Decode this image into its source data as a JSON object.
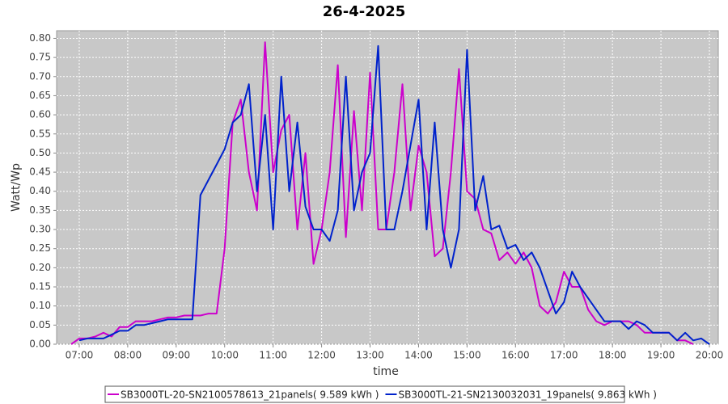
{
  "chart_data": {
    "type": "line",
    "title": "26-4-2025",
    "x_label": "time",
    "y_label": "Watt/Wp",
    "x": [
      "06:50",
      "07:00",
      "07:10",
      "07:20",
      "07:30",
      "07:40",
      "07:50",
      "08:00",
      "08:10",
      "08:20",
      "08:30",
      "08:40",
      "08:50",
      "09:00",
      "09:10",
      "09:20",
      "09:30",
      "09:40",
      "09:50",
      "10:00",
      "10:10",
      "10:20",
      "10:30",
      "10:40",
      "10:50",
      "11:00",
      "11:10",
      "11:20",
      "11:30",
      "11:40",
      "11:50",
      "12:00",
      "12:10",
      "12:20",
      "12:30",
      "12:40",
      "12:50",
      "13:00",
      "13:10",
      "13:20",
      "13:30",
      "13:40",
      "13:50",
      "14:00",
      "14:10",
      "14:20",
      "14:30",
      "14:40",
      "14:50",
      "15:00",
      "15:10",
      "15:20",
      "15:30",
      "15:40",
      "15:50",
      "16:00",
      "16:10",
      "16:20",
      "16:30",
      "16:40",
      "16:50",
      "17:00",
      "17:10",
      "17:20",
      "17:30",
      "17:40",
      "17:50",
      "18:00",
      "18:10",
      "18:20",
      "18:30",
      "18:40",
      "18:50",
      "19:00",
      "19:10",
      "19:20",
      "19:30",
      "19:40",
      "19:50",
      "20:00"
    ],
    "series": [
      {
        "name": "SB3000TL-20-SN2100578613_21panels( 9.589 kWh )",
        "color": "#cc00cc",
        "values": [
          0,
          0.015,
          0.015,
          0.02,
          0.03,
          0.02,
          0.045,
          0.045,
          0.06,
          0.06,
          0.06,
          0.065,
          0.07,
          0.07,
          0.075,
          0.075,
          0.075,
          0.08,
          0.08,
          0.25,
          0.58,
          0.64,
          0.45,
          0.35,
          0.79,
          0.45,
          0.56,
          0.6,
          0.3,
          0.5,
          0.21,
          0.3,
          0.45,
          0.73,
          0.28,
          0.61,
          0.35,
          0.71,
          0.3,
          0.3,
          0.45,
          0.68,
          0.35,
          0.52,
          0.45,
          0.23,
          0.25,
          0.45,
          0.72,
          0.4,
          0.38,
          0.3,
          0.29,
          0.22,
          0.24,
          0.21,
          0.24,
          0.2,
          0.1,
          0.08,
          0.11,
          0.19,
          0.15,
          0.15,
          0.09,
          0.06,
          0.05,
          0.06,
          0.06,
          0.06,
          0.05,
          0.03,
          0.03,
          0.03,
          0.03,
          0.01,
          0.01,
          0,
          null,
          null
        ]
      },
      {
        "name": "SB3000TL-21-SN2130032031_19panels( 9.863 kWh )",
        "color": "#0022cc",
        "values": [
          null,
          0.01,
          0.015,
          0.015,
          0.015,
          0.025,
          0.035,
          0.035,
          0.05,
          0.05,
          0.055,
          0.06,
          0.065,
          0.065,
          0.065,
          0.065,
          0.39,
          0.43,
          0.47,
          0.51,
          0.58,
          0.6,
          0.68,
          0.4,
          0.6,
          0.3,
          0.7,
          0.4,
          0.58,
          0.36,
          0.3,
          0.3,
          0.27,
          0.35,
          0.7,
          0.35,
          0.45,
          0.5,
          0.78,
          0.3,
          0.3,
          0.4,
          0.52,
          0.64,
          0.3,
          0.58,
          0.3,
          0.2,
          0.3,
          0.77,
          0.35,
          0.44,
          0.3,
          0.31,
          0.25,
          0.26,
          0.22,
          0.24,
          0.2,
          0.14,
          0.08,
          0.11,
          0.19,
          0.15,
          0.12,
          0.09,
          0.06,
          0.06,
          0.06,
          0.04,
          0.06,
          0.05,
          0.03,
          0.03,
          0.03,
          0.01,
          0.03,
          0.01,
          0.015,
          0
        ]
      }
    ],
    "xlim": [
      "06:32",
      "20:11"
    ],
    "xticks": [
      "07:00",
      "08:00",
      "09:00",
      "10:00",
      "11:00",
      "12:00",
      "13:00",
      "14:00",
      "15:00",
      "16:00",
      "17:00",
      "18:00",
      "19:00",
      "20:00"
    ],
    "ylim": [
      0,
      0.82
    ],
    "yticks": [
      {
        "value": 0,
        "label": "0.00"
      },
      {
        "value": 0.05,
        "label": "0.05"
      },
      {
        "value": 0.1,
        "label": "0.10"
      },
      {
        "value": 0.15,
        "label": "0.15"
      },
      {
        "value": 0.2,
        "label": "0.20"
      },
      {
        "value": 0.25,
        "label": "0.25"
      },
      {
        "value": 0.3,
        "label": "0.30"
      },
      {
        "value": 0.35,
        "label": "0.35"
      },
      {
        "value": 0.4,
        "label": "0.40"
      },
      {
        "value": 0.45,
        "label": "0.45"
      },
      {
        "value": 0.5,
        "label": "0.50"
      },
      {
        "value": 0.55,
        "label": "0.55"
      },
      {
        "value": 0.6,
        "label": "0.60"
      },
      {
        "value": 0.65,
        "label": "0.65"
      },
      {
        "value": 0.7,
        "label": "0.70"
      },
      {
        "value": 0.75,
        "label": "0.75"
      },
      {
        "value": 0.8,
        "label": "0.80"
      }
    ],
    "grid": true,
    "legend": "bottom"
  }
}
